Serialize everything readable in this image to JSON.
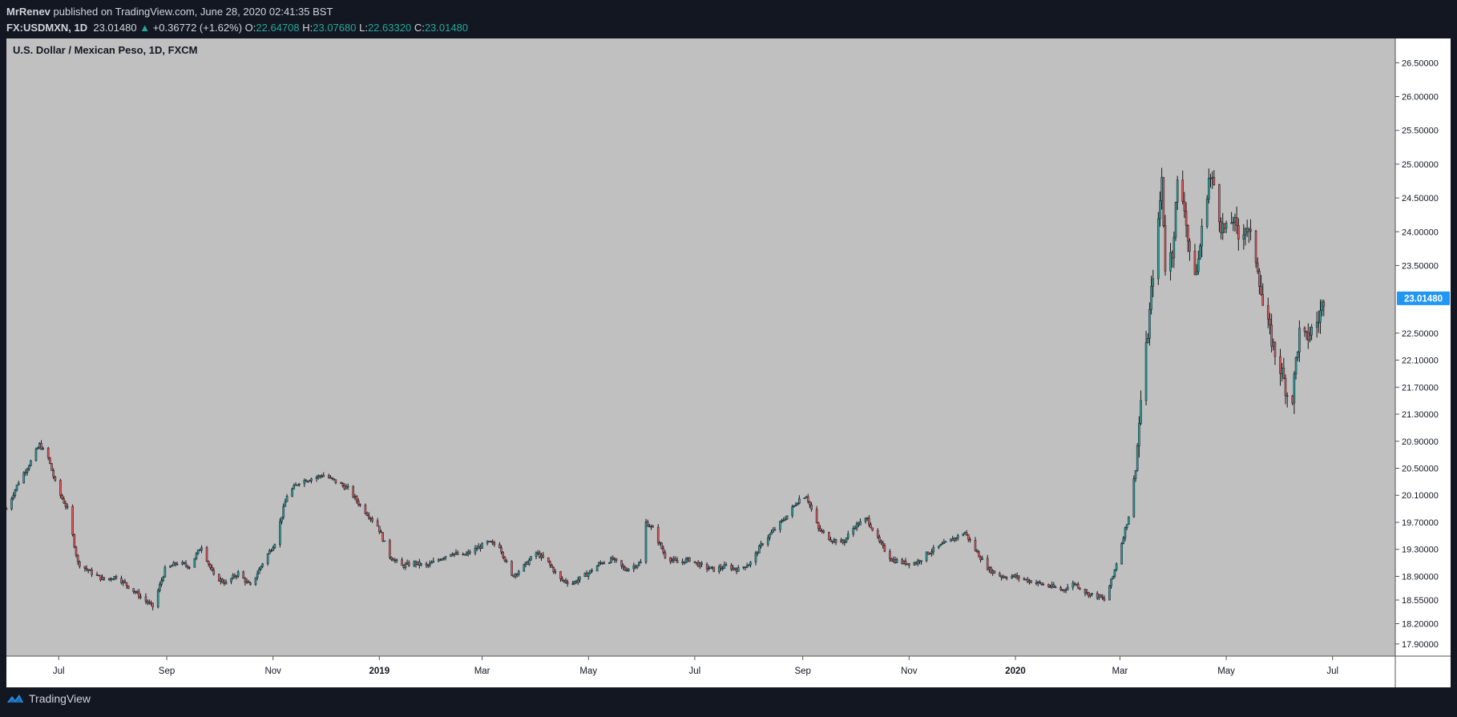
{
  "header": {
    "author": "MrRenev",
    "published": "published on TradingView.com, June 28, 2020 02:41:35 BST",
    "symbol": "FX:USDMXN, 1D",
    "last": "23.01480",
    "change": "+0.36772 (+1.62%)",
    "o_label": "O:",
    "o_value": "22.64708",
    "h_label": "H:",
    "h_value": "23.07680",
    "l_label": "L:",
    "l_value": "22.63320",
    "c_label": "C:",
    "c_value": "23.01480"
  },
  "footer": {
    "brand": "TradingView"
  },
  "colors": {
    "background": "#131722",
    "plot_bg": "#c0c0c0",
    "up": "#26a69a",
    "down": "#ef5350",
    "candle_body": "#1e2a38",
    "price_tag": "#2196f3"
  },
  "chart_data": {
    "type": "candlestick",
    "title": "U.S. Dollar / Mexican Peso, 1D, FXCM",
    "ylim": [
      17.72,
      26.86
    ],
    "yticks": [
      "26.50000",
      "26.00000",
      "25.50000",
      "25.00000",
      "24.50000",
      "24.00000",
      "23.50000",
      "22.50000",
      "22.10000",
      "21.70000",
      "21.30000",
      "20.90000",
      "20.50000",
      "20.10000",
      "19.70000",
      "19.30000",
      "18.90000",
      "18.55000",
      "18.20000",
      "17.90000"
    ],
    "ytick_values": [
      26.5,
      26.0,
      25.5,
      25.0,
      24.5,
      24.0,
      23.5,
      22.5,
      22.1,
      21.7,
      21.3,
      20.9,
      20.5,
      20.1,
      19.7,
      19.3,
      18.9,
      18.55,
      18.2,
      17.9
    ],
    "xticks": [
      {
        "label": "Jul",
        "date": "2018-07-01",
        "bold": false
      },
      {
        "label": "Sep",
        "date": "2018-09-01",
        "bold": false
      },
      {
        "label": "Nov",
        "date": "2018-11-01",
        "bold": false
      },
      {
        "label": "2019",
        "date": "2019-01-01",
        "bold": true
      },
      {
        "label": "Mar",
        "date": "2019-03-01",
        "bold": false
      },
      {
        "label": "May",
        "date": "2019-05-01",
        "bold": false
      },
      {
        "label": "Jul",
        "date": "2019-07-01",
        "bold": false
      },
      {
        "label": "Sep",
        "date": "2019-09-01",
        "bold": false
      },
      {
        "label": "Nov",
        "date": "2019-11-01",
        "bold": false
      },
      {
        "label": "2020",
        "date": "2020-01-01",
        "bold": true
      },
      {
        "label": "Mar",
        "date": "2020-03-01",
        "bold": false
      },
      {
        "label": "May",
        "date": "2020-05-01",
        "bold": false
      },
      {
        "label": "Jul",
        "date": "2020-07-01",
        "bold": false
      }
    ],
    "x_range": [
      "2018-06-01",
      "2020-08-06"
    ],
    "last_price": {
      "label": "23.01480",
      "value": 23.0148
    },
    "series": [
      {
        "close": [
          [
            "2018-06-01",
            19.9
          ],
          [
            "2018-06-08",
            20.3
          ],
          [
            "2018-06-15",
            20.6
          ],
          [
            "2018-06-20",
            20.85
          ],
          [
            "2018-06-25",
            20.65
          ],
          [
            "2018-06-30",
            20.2
          ],
          [
            "2018-07-06",
            19.9
          ],
          [
            "2018-07-12",
            19.1
          ],
          [
            "2018-07-20",
            18.95
          ],
          [
            "2018-07-27",
            18.85
          ],
          [
            "2018-08-03",
            18.9
          ],
          [
            "2018-08-10",
            18.75
          ],
          [
            "2018-08-17",
            18.6
          ],
          [
            "2018-08-24",
            18.45
          ],
          [
            "2018-08-31",
            19.0
          ],
          [
            "2018-09-07",
            19.1
          ],
          [
            "2018-09-14",
            19.05
          ],
          [
            "2018-09-21",
            19.35
          ],
          [
            "2018-09-28",
            18.9
          ],
          [
            "2018-10-05",
            18.8
          ],
          [
            "2018-10-12",
            18.95
          ],
          [
            "2018-10-19",
            18.75
          ],
          [
            "2018-10-26",
            19.1
          ],
          [
            "2018-11-02",
            19.4
          ],
          [
            "2018-11-09",
            20.1
          ],
          [
            "2018-11-16",
            20.3
          ],
          [
            "2018-11-23",
            20.35
          ],
          [
            "2018-11-30",
            20.4
          ],
          [
            "2018-12-07",
            20.3
          ],
          [
            "2018-12-14",
            20.2
          ],
          [
            "2018-12-21",
            19.95
          ],
          [
            "2018-12-31",
            19.65
          ],
          [
            "2019-01-07",
            19.2
          ],
          [
            "2019-01-14",
            19.05
          ],
          [
            "2019-01-21",
            19.1
          ],
          [
            "2019-01-28",
            19.05
          ],
          [
            "2019-02-04",
            19.15
          ],
          [
            "2019-02-11",
            19.25
          ],
          [
            "2019-02-18",
            19.2
          ],
          [
            "2019-02-25",
            19.3
          ],
          [
            "2019-03-04",
            19.4
          ],
          [
            "2019-03-11",
            19.35
          ],
          [
            "2019-03-18",
            18.9
          ],
          [
            "2019-03-25",
            19.05
          ],
          [
            "2019-04-01",
            19.25
          ],
          [
            "2019-04-08",
            19.1
          ],
          [
            "2019-04-15",
            18.85
          ],
          [
            "2019-04-22",
            18.8
          ],
          [
            "2019-05-01",
            18.95
          ],
          [
            "2019-05-08",
            19.1
          ],
          [
            "2019-05-15",
            19.15
          ],
          [
            "2019-05-22",
            19.0
          ],
          [
            "2019-05-31",
            19.1
          ],
          [
            "2019-06-03",
            19.7
          ],
          [
            "2019-06-07",
            19.6
          ],
          [
            "2019-06-14",
            19.2
          ],
          [
            "2019-06-21",
            19.1
          ],
          [
            "2019-06-28",
            19.15
          ],
          [
            "2019-07-05",
            19.05
          ],
          [
            "2019-07-12",
            19.0
          ],
          [
            "2019-07-19",
            19.05
          ],
          [
            "2019-07-26",
            19.0
          ],
          [
            "2019-08-02",
            19.1
          ],
          [
            "2019-08-09",
            19.4
          ],
          [
            "2019-08-16",
            19.6
          ],
          [
            "2019-08-23",
            19.8
          ],
          [
            "2019-08-30",
            20.05
          ],
          [
            "2019-09-03",
            20.1
          ],
          [
            "2019-09-10",
            19.6
          ],
          [
            "2019-09-17",
            19.45
          ],
          [
            "2019-09-24",
            19.4
          ],
          [
            "2019-10-01",
            19.65
          ],
          [
            "2019-10-08",
            19.75
          ],
          [
            "2019-10-15",
            19.4
          ],
          [
            "2019-10-22",
            19.15
          ],
          [
            "2019-10-29",
            19.1
          ],
          [
            "2019-11-05",
            19.1
          ],
          [
            "2019-11-12",
            19.25
          ],
          [
            "2019-11-19",
            19.35
          ],
          [
            "2019-11-26",
            19.45
          ],
          [
            "2019-12-03",
            19.55
          ],
          [
            "2019-12-10",
            19.25
          ],
          [
            "2019-12-17",
            19.0
          ],
          [
            "2019-12-24",
            18.9
          ],
          [
            "2019-12-31",
            18.9
          ],
          [
            "2020-01-07",
            18.85
          ],
          [
            "2020-01-14",
            18.8
          ],
          [
            "2020-01-21",
            18.75
          ],
          [
            "2020-01-28",
            18.7
          ],
          [
            "2020-02-04",
            18.8
          ],
          [
            "2020-02-11",
            18.65
          ],
          [
            "2020-02-18",
            18.6
          ],
          [
            "2020-02-21",
            18.55
          ],
          [
            "2020-02-26",
            18.9
          ],
          [
            "2020-03-02",
            19.4
          ],
          [
            "2020-03-06",
            19.8
          ],
          [
            "2020-03-10",
            20.5
          ],
          [
            "2020-03-13",
            21.5
          ],
          [
            "2020-03-17",
            22.5
          ],
          [
            "2020-03-20",
            23.4
          ],
          [
            "2020-03-23",
            24.1
          ],
          [
            "2020-03-25",
            24.8
          ],
          [
            "2020-03-27",
            23.5
          ],
          [
            "2020-03-31",
            23.7
          ],
          [
            "2020-04-03",
            24.7
          ],
          [
            "2020-04-07",
            24.4
          ],
          [
            "2020-04-10",
            23.6
          ],
          [
            "2020-04-14",
            23.4
          ],
          [
            "2020-04-17",
            24.0
          ],
          [
            "2020-04-21",
            24.8
          ],
          [
            "2020-04-24",
            24.7
          ],
          [
            "2020-04-28",
            24.1
          ],
          [
            "2020-05-01",
            24.0
          ],
          [
            "2020-05-05",
            24.2
          ],
          [
            "2020-05-08",
            23.9
          ],
          [
            "2020-05-12",
            24.1
          ],
          [
            "2020-05-15",
            23.9
          ],
          [
            "2020-05-19",
            23.5
          ],
          [
            "2020-05-22",
            22.9
          ],
          [
            "2020-05-26",
            22.5
          ],
          [
            "2020-05-29",
            22.2
          ],
          [
            "2020-06-02",
            21.9
          ],
          [
            "2020-06-05",
            21.6
          ],
          [
            "2020-06-08",
            21.55
          ],
          [
            "2020-06-10",
            22.1
          ],
          [
            "2020-06-12",
            22.5
          ],
          [
            "2020-06-16",
            22.4
          ],
          [
            "2020-06-19",
            22.55
          ],
          [
            "2020-06-23",
            22.7
          ],
          [
            "2020-06-26",
            23.0148
          ]
        ]
      }
    ]
  }
}
